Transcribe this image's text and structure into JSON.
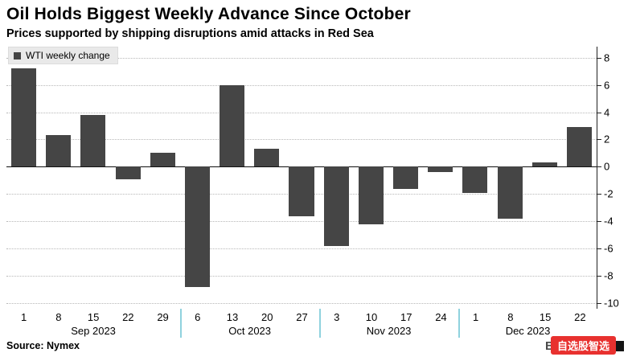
{
  "header": {
    "title": "Oil Holds Biggest Weekly Advance Since October",
    "subtitle": "Prices supported by shipping disruptions amid attacks in Red Sea"
  },
  "legend": {
    "label": "WTI weekly change"
  },
  "chart_data": {
    "type": "bar",
    "title": "Oil Holds Biggest Weekly Advance Since October",
    "subtitle": "Prices supported by shipping disruptions amid attacks in Red Sea",
    "series_name": "WTI weekly change",
    "categories": [
      "1",
      "8",
      "15",
      "22",
      "29",
      "6",
      "13",
      "20",
      "27",
      "3",
      "10",
      "17",
      "24",
      "1",
      "8",
      "15",
      "22"
    ],
    "values": [
      7.2,
      2.3,
      3.8,
      -0.9,
      1.0,
      -8.8,
      6.0,
      1.3,
      -3.6,
      -5.8,
      -4.2,
      -1.6,
      -0.4,
      -1.9,
      -3.8,
      0.3,
      2.9
    ],
    "month_groups": [
      {
        "label": "Sep 2023",
        "span": 5
      },
      {
        "label": "Oct 2023",
        "span": 4
      },
      {
        "label": "Nov 2023",
        "span": 4
      },
      {
        "label": "Dec 2023",
        "span": 4
      }
    ],
    "yticks": [
      8,
      6,
      4,
      2,
      0,
      -2,
      -4,
      -6,
      -8,
      -10
    ],
    "ylim": [
      -10,
      8
    ],
    "display_ylim": [
      -10.4,
      8.8
    ],
    "xlabel": "",
    "ylabel": "",
    "grid": "horizontal-dotted",
    "legend_position": "top-left",
    "axis_side": "right",
    "colors": {
      "bar": "#454545",
      "zero_line": "#111111",
      "gridline": "#b8b8b8",
      "month_separator": "#8fd2de",
      "watermark_bg": "#e8312f"
    }
  },
  "footer": {
    "source": "Source: Nymex",
    "brand": "Bloomberg",
    "watermark": "自选股智选"
  }
}
